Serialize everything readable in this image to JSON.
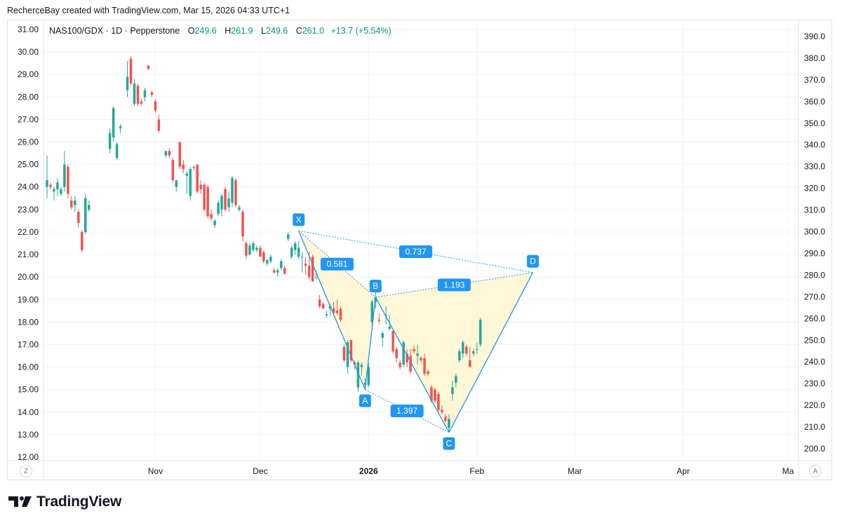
{
  "caption": "RecherceBay created with TradingView.com, Mar 15, 2026 04:33 UTC+1",
  "legend": {
    "symbol": "NAS100/GDX · 1D · Pepperstone",
    "o_label": "O",
    "o_value": "249.6",
    "h_label": "H",
    "h_value": "261.9",
    "l_label": "L",
    "l_value": "249.6",
    "c_label": "C",
    "c_value": "261.0",
    "change": "+13.7 (+5.54%)"
  },
  "brand": "TradingView",
  "buttons": {
    "left": "Z",
    "right": "A"
  },
  "colors": {
    "up": "#26a69a",
    "down": "#ef5350",
    "pattern": "#2196f3",
    "fill": "#fff6cf",
    "grid": "#f0f3fa"
  },
  "chart_data": {
    "type": "candlestick",
    "title": "NAS100/GDX · 1D · Pepperstone",
    "left_axis": {
      "labels": [
        "31.00",
        "30.00",
        "29.00",
        "28.00",
        "27.00",
        "26.00",
        "25.00",
        "24.00",
        "23.00",
        "22.00",
        "21.00",
        "20.00",
        "19.00",
        "18.00",
        "17.00",
        "16.00",
        "15.00",
        "14.00",
        "13.00",
        "12.00"
      ],
      "range": [
        12,
        31
      ]
    },
    "right_axis": {
      "labels": [
        "390.0",
        "380.0",
        "370.0",
        "360.0",
        "350.0",
        "340.0",
        "330.0",
        "320.0",
        "310.0",
        "300.0",
        "290.0",
        "280.0",
        "270.0",
        "260.0",
        "250.0",
        "240.0",
        "230.0",
        "220.0",
        "210.0",
        "200.0"
      ],
      "range": [
        200,
        390
      ]
    },
    "x_axis": {
      "labels": [
        {
          "text": "Nov",
          "day": 11,
          "bold": false
        },
        {
          "text": "Dec",
          "day": 41,
          "bold": false
        },
        {
          "text": "2026",
          "day": 72,
          "bold": true
        },
        {
          "text": "Feb",
          "day": 103,
          "bold": false
        },
        {
          "text": "Mar",
          "day": 131,
          "bold": false
        },
        {
          "text": "Apr",
          "day": 162,
          "bold": false
        },
        {
          "text": "Ma",
          "day": 192,
          "bold": false
        }
      ],
      "day_range": [
        -21,
        195
      ]
    },
    "candles": [
      {
        "d": -20,
        "o": 24.0,
        "h": 25.4,
        "l": 23.5,
        "c": 24.3
      },
      {
        "d": -19,
        "o": 24.1,
        "h": 24.2,
        "l": 23.9,
        "c": 24.0
      },
      {
        "d": -18,
        "o": 23.8,
        "h": 24.0,
        "l": 23.4,
        "c": 23.9
      },
      {
        "d": -17,
        "o": 23.9,
        "h": 24.4,
        "l": 23.6,
        "c": 24.2
      },
      {
        "d": -16,
        "o": 23.7,
        "h": 24.0,
        "l": 23.6,
        "c": 23.9
      },
      {
        "d": -15,
        "o": 24.0,
        "h": 25.6,
        "l": 23.8,
        "c": 25.0
      },
      {
        "d": -14,
        "o": 24.9,
        "h": 25.0,
        "l": 23.5,
        "c": 23.7
      },
      {
        "d": -13,
        "o": 23.4,
        "h": 23.6,
        "l": 23.0,
        "c": 23.1
      },
      {
        "d": -12,
        "o": 23.2,
        "h": 23.6,
        "l": 22.9,
        "c": 23.4
      },
      {
        "d": -11,
        "o": 22.9,
        "h": 23.0,
        "l": 22.2,
        "c": 22.4
      },
      {
        "d": -10,
        "o": 22.0,
        "h": 22.1,
        "l": 21.1,
        "c": 21.2
      },
      {
        "d": -9,
        "o": 22.0,
        "h": 23.7,
        "l": 21.9,
        "c": 23.5
      },
      {
        "d": -8,
        "o": 23.0,
        "h": 23.4,
        "l": 22.9,
        "c": 23.2
      },
      {
        "d": -2,
        "o": 25.7,
        "h": 26.6,
        "l": 25.5,
        "c": 26.4
      },
      {
        "d": -1,
        "o": 26.2,
        "h": 27.6,
        "l": 26.0,
        "c": 27.5
      },
      {
        "d": 0,
        "o": 25.3,
        "h": 26.0,
        "l": 25.2,
        "c": 25.9
      },
      {
        "d": 1,
        "o": 26.6,
        "h": 26.8,
        "l": 26.4,
        "c": 26.7
      },
      {
        "d": 3,
        "o": 28.3,
        "h": 29.6,
        "l": 28.0,
        "c": 28.9
      },
      {
        "d": 4,
        "o": 29.7,
        "h": 29.8,
        "l": 28.5,
        "c": 28.6
      },
      {
        "d": 5,
        "o": 27.7,
        "h": 28.8,
        "l": 27.6,
        "c": 28.6
      },
      {
        "d": 6,
        "o": 28.5,
        "h": 28.6,
        "l": 27.6,
        "c": 27.7
      },
      {
        "d": 7,
        "o": 27.8,
        "h": 27.9,
        "l": 27.6,
        "c": 27.7
      },
      {
        "d": 8,
        "o": 28.0,
        "h": 28.4,
        "l": 27.8,
        "c": 28.3
      },
      {
        "d": 9,
        "o": 29.4,
        "h": 29.4,
        "l": 29.2,
        "c": 29.25
      },
      {
        "d": 10,
        "o": 28.2,
        "h": 28.3,
        "l": 28.0,
        "c": 28.1
      },
      {
        "d": 11,
        "o": 27.8,
        "h": 27.9,
        "l": 27.3,
        "c": 27.4
      },
      {
        "d": 12,
        "o": 27.0,
        "h": 27.2,
        "l": 26.4,
        "c": 26.5
      },
      {
        "d": 14,
        "o": 25.4,
        "h": 25.6,
        "l": 25.3,
        "c": 25.6
      },
      {
        "d": 15,
        "o": 25.6,
        "h": 25.7,
        "l": 25.3,
        "c": 25.4
      },
      {
        "d": 16,
        "o": 25.2,
        "h": 25.3,
        "l": 24.2,
        "c": 24.3
      },
      {
        "d": 17,
        "o": 24.0,
        "h": 24.3,
        "l": 23.8,
        "c": 24.3
      },
      {
        "d": 18,
        "o": 26.0,
        "h": 26.0,
        "l": 24.8,
        "c": 24.9
      },
      {
        "d": 19,
        "o": 25.0,
        "h": 25.2,
        "l": 24.6,
        "c": 24.8
      },
      {
        "d": 20,
        "o": 24.5,
        "h": 24.7,
        "l": 23.7,
        "c": 24.6
      },
      {
        "d": 21,
        "o": 23.6,
        "h": 24.9,
        "l": 23.4,
        "c": 24.8
      },
      {
        "d": 22,
        "o": 24.9,
        "h": 24.95,
        "l": 24.75,
        "c": 24.85
      },
      {
        "d": 23,
        "o": 25.0,
        "h": 25.0,
        "l": 23.7,
        "c": 23.8
      },
      {
        "d": 24,
        "o": 24.1,
        "h": 24.3,
        "l": 23.7,
        "c": 23.9
      },
      {
        "d": 25,
        "o": 24.1,
        "h": 24.2,
        "l": 22.9,
        "c": 23.0
      },
      {
        "d": 26,
        "o": 24.0,
        "h": 24.1,
        "l": 22.6,
        "c": 22.7
      },
      {
        "d": 27,
        "o": 22.8,
        "h": 23.0,
        "l": 22.5,
        "c": 22.6
      },
      {
        "d": 28,
        "o": 22.3,
        "h": 22.6,
        "l": 22.2,
        "c": 22.5
      },
      {
        "d": 29,
        "o": 22.8,
        "h": 23.4,
        "l": 22.7,
        "c": 23.3
      },
      {
        "d": 30,
        "o": 23.0,
        "h": 23.7,
        "l": 22.7,
        "c": 23.6
      },
      {
        "d": 31,
        "o": 23.9,
        "h": 24.0,
        "l": 22.9,
        "c": 23.0
      },
      {
        "d": 32,
        "o": 23.1,
        "h": 23.8,
        "l": 22.9,
        "c": 23.5
      },
      {
        "d": 33,
        "o": 23.3,
        "h": 24.5,
        "l": 23.1,
        "c": 24.4
      },
      {
        "d": 34,
        "o": 24.3,
        "h": 24.4,
        "l": 23.1,
        "c": 23.2
      },
      {
        "d": 35,
        "o": 23.0,
        "h": 23.2,
        "l": 22.9,
        "c": 23.1
      },
      {
        "d": 36,
        "o": 22.9,
        "h": 23.0,
        "l": 21.6,
        "c": 21.8
      },
      {
        "d": 37,
        "o": 21.5,
        "h": 21.6,
        "l": 20.8,
        "c": 20.95
      },
      {
        "d": 38,
        "o": 21.0,
        "h": 21.5,
        "l": 20.95,
        "c": 21.4
      },
      {
        "d": 39,
        "o": 21.2,
        "h": 21.6,
        "l": 21.1,
        "c": 21.5
      },
      {
        "d": 40,
        "o": 21.2,
        "h": 21.4,
        "l": 21.1,
        "c": 21.3
      },
      {
        "d": 41,
        "o": 21.3,
        "h": 21.4,
        "l": 21.0,
        "c": 20.9
      },
      {
        "d": 42,
        "o": 21.1,
        "h": 21.2,
        "l": 20.6,
        "c": 20.7
      },
      {
        "d": 43,
        "o": 20.6,
        "h": 20.8,
        "l": 20.5,
        "c": 20.75
      },
      {
        "d": 44,
        "o": 20.7,
        "h": 21.0,
        "l": 20.6,
        "c": 20.9
      },
      {
        "d": 45,
        "o": 20.3,
        "h": 20.4,
        "l": 20.15,
        "c": 20.2
      },
      {
        "d": 46,
        "o": 20.2,
        "h": 20.4,
        "l": 20.0,
        "c": 20.3
      },
      {
        "d": 47,
        "o": 20.4,
        "h": 20.8,
        "l": 20.3,
        "c": 20.7
      },
      {
        "d": 48,
        "o": 20.4,
        "h": 20.5,
        "l": 20.1,
        "c": 20.15
      },
      {
        "d": 49,
        "o": 21.7,
        "h": 22.0,
        "l": 21.6,
        "c": 21.9
      },
      {
        "d": 50,
        "o": 20.9,
        "h": 21.4,
        "l": 20.8,
        "c": 21.3
      },
      {
        "d": 51,
        "o": 21.2,
        "h": 21.6,
        "l": 21.0,
        "c": 21.5
      },
      {
        "d": 52,
        "o": 20.9,
        "h": 21.6,
        "l": 20.8,
        "c": 21.3
      },
      {
        "d": 53,
        "o": 20.9,
        "h": 21.1,
        "l": 20.2,
        "c": 20.9
      },
      {
        "d": 54,
        "o": 20.6,
        "h": 20.9,
        "l": 20.1,
        "c": 20.5
      },
      {
        "d": 55,
        "o": 20.5,
        "h": 21.1,
        "l": 19.9,
        "c": 20.0
      },
      {
        "d": 56,
        "o": 20.9,
        "h": 21.0,
        "l": 19.9,
        "c": 19.8
      },
      {
        "d": 57,
        "o": 20.0,
        "h": 20.3,
        "l": 19.9,
        "c": 20.0
      },
      {
        "d": 58,
        "o": 19.0,
        "h": 19.2,
        "l": 18.6,
        "c": 18.7
      },
      {
        "d": 59,
        "o": 18.8,
        "h": 18.9,
        "l": 18.6,
        "c": 18.6
      },
      {
        "d": 60,
        "o": 18.3,
        "h": 18.5,
        "l": 18.2,
        "c": 18.35
      },
      {
        "d": 61,
        "o": 18.6,
        "h": 18.8,
        "l": 18.3,
        "c": 18.7
      },
      {
        "d": 62,
        "o": 18.6,
        "h": 18.9,
        "l": 18.3,
        "c": 18.4
      },
      {
        "d": 63,
        "o": 18.5,
        "h": 19.0,
        "l": 18.3,
        "c": 18.4
      },
      {
        "d": 64,
        "o": 18.6,
        "h": 18.7,
        "l": 18.0,
        "c": 18.1
      },
      {
        "d": 65,
        "o": 16.9,
        "h": 17.0,
        "l": 16.2,
        "c": 16.3
      },
      {
        "d": 66,
        "o": 16.0,
        "h": 17.2,
        "l": 15.7,
        "c": 17.1
      },
      {
        "d": 67,
        "o": 17.2,
        "h": 17.2,
        "l": 16.2,
        "c": 16.3
      },
      {
        "d": 68,
        "o": 16.2,
        "h": 16.3,
        "l": 15.9,
        "c": 16.1
      },
      {
        "d": 69,
        "o": 15.1,
        "h": 16.3,
        "l": 14.9,
        "c": 16.2
      },
      {
        "d": 70,
        "o": 16.0,
        "h": 16.2,
        "l": 15.6,
        "c": 16.1
      },
      {
        "d": 71,
        "o": 15.2,
        "h": 15.5,
        "l": 15.0,
        "c": 15.3
      },
      {
        "d": 72,
        "o": 15.2,
        "h": 16.2,
        "l": 15.1,
        "c": 16.0
      },
      {
        "d": 73,
        "o": 18.0,
        "h": 19.0,
        "l": 17.8,
        "c": 18.9
      },
      {
        "d": 74,
        "o": 18.9,
        "h": 19.4,
        "l": 18.6,
        "c": 19.1
      },
      {
        "d": 75,
        "o": 18.1,
        "h": 18.4,
        "l": 17.9,
        "c": 18.05
      },
      {
        "d": 76,
        "o": 17.3,
        "h": 17.6,
        "l": 16.9,
        "c": 17.5
      },
      {
        "d": 77,
        "o": 18.3,
        "h": 18.7,
        "l": 17.9,
        "c": 18.3
      },
      {
        "d": 78,
        "o": 17.7,
        "h": 18.3,
        "l": 17.6,
        "c": 17.8
      },
      {
        "d": 79,
        "o": 17.6,
        "h": 17.7,
        "l": 16.6,
        "c": 16.7
      },
      {
        "d": 80,
        "o": 16.8,
        "h": 16.9,
        "l": 16.2,
        "c": 16.4
      },
      {
        "d": 81,
        "o": 16.2,
        "h": 16.3,
        "l": 15.9,
        "c": 16.0
      },
      {
        "d": 82,
        "o": 16.1,
        "h": 17.2,
        "l": 16.0,
        "c": 17.1
      },
      {
        "d": 83,
        "o": 16.6,
        "h": 16.8,
        "l": 16.0,
        "c": 16.2
      },
      {
        "d": 84,
        "o": 16.5,
        "h": 16.8,
        "l": 15.7,
        "c": 15.8
      },
      {
        "d": 85,
        "o": 16.8,
        "h": 16.95,
        "l": 16.6,
        "c": 16.7
      },
      {
        "d": 86,
        "o": 16.5,
        "h": 17.0,
        "l": 16.1,
        "c": 16.6
      },
      {
        "d": 87,
        "o": 16.4,
        "h": 16.5,
        "l": 16.2,
        "c": 16.3
      },
      {
        "d": 88,
        "o": 16.4,
        "h": 16.6,
        "l": 15.6,
        "c": 15.7
      },
      {
        "d": 89,
        "o": 15.8,
        "h": 15.9,
        "l": 15.6,
        "c": 15.7
      },
      {
        "d": 90,
        "o": 15.1,
        "h": 15.2,
        "l": 14.4,
        "c": 14.5
      },
      {
        "d": 91,
        "o": 15.0,
        "h": 15.1,
        "l": 14.4,
        "c": 14.5
      },
      {
        "d": 92,
        "o": 14.8,
        "h": 14.9,
        "l": 14.0,
        "c": 14.1
      },
      {
        "d": 93,
        "o": 14.1,
        "h": 14.3,
        "l": 13.9,
        "c": 14.0
      },
      {
        "d": 94,
        "o": 13.8,
        "h": 13.9,
        "l": 13.55,
        "c": 13.6
      },
      {
        "d": 95,
        "o": 13.3,
        "h": 13.9,
        "l": 13.1,
        "c": 13.7
      },
      {
        "d": 96,
        "o": 14.8,
        "h": 15.4,
        "l": 14.5,
        "c": 15.1
      },
      {
        "d": 97,
        "o": 15.3,
        "h": 15.7,
        "l": 15.1,
        "c": 15.6
      },
      {
        "d": 98,
        "o": 16.3,
        "h": 16.8,
        "l": 16.2,
        "c": 16.7
      },
      {
        "d": 99,
        "o": 16.6,
        "h": 17.2,
        "l": 16.4,
        "c": 17.1
      },
      {
        "d": 100,
        "o": 16.9,
        "h": 17.0,
        "l": 16.5,
        "c": 16.6
      },
      {
        "d": 101,
        "o": 16.3,
        "h": 16.9,
        "l": 16.0,
        "c": 16.0
      },
      {
        "d": 102,
        "o": 16.6,
        "h": 16.8,
        "l": 16.5,
        "c": 16.7
      },
      {
        "d": 103,
        "o": 16.8,
        "h": 17.1,
        "l": 16.6,
        "c": 16.8
      },
      {
        "d": 104,
        "o": 17.0,
        "h": 18.2,
        "l": 16.9,
        "c": 18.1
      }
    ],
    "pattern": {
      "name": "XABCD",
      "points": [
        {
          "label": "X",
          "day": 52,
          "value": 22.05
        },
        {
          "label": "A",
          "day": 71,
          "value": 15.0
        },
        {
          "label": "B",
          "day": 74,
          "value": 19.1
        },
        {
          "label": "C",
          "day": 95,
          "value": 13.1
        },
        {
          "label": "D",
          "day": 119,
          "value": 20.2
        }
      ],
      "ratios": [
        {
          "text": "0.581",
          "between": [
            "X",
            "B"
          ]
        },
        {
          "text": "1.397",
          "between": [
            "A",
            "C"
          ]
        },
        {
          "text": "1.193",
          "between": [
            "B",
            "D"
          ]
        },
        {
          "text": "0.737",
          "between": [
            "X",
            "D"
          ]
        }
      ]
    }
  }
}
